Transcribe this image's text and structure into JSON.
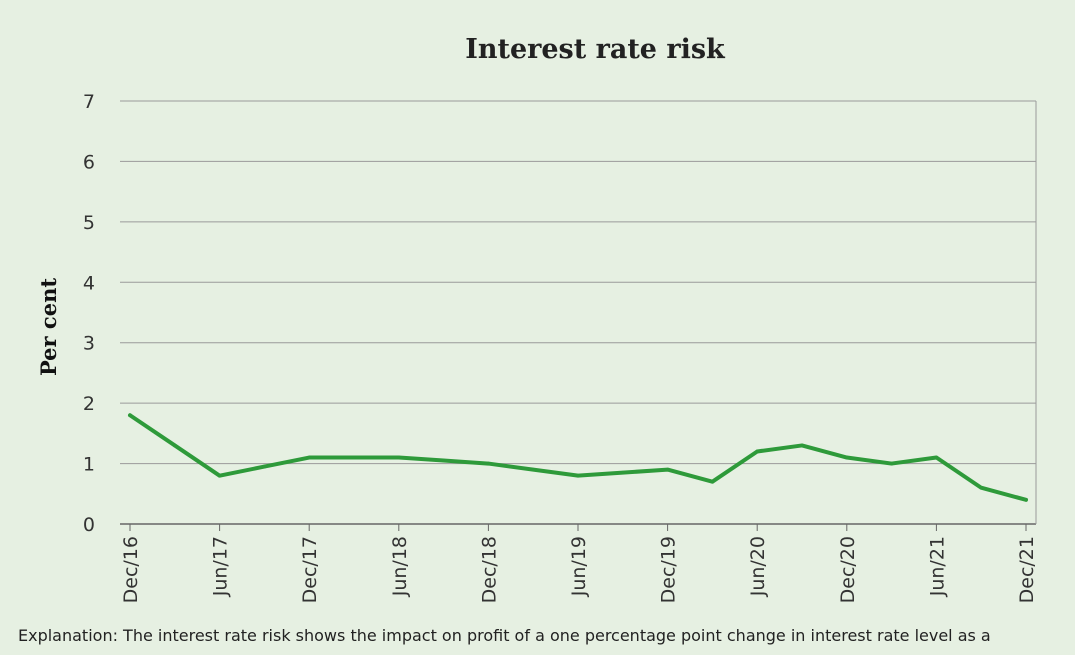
{
  "chart_data": {
    "type": "line",
    "title": "Interest rate risk",
    "xlabel": "",
    "ylabel": "Per cent",
    "ylim": [
      0,
      7
    ],
    "yticks": [
      "0",
      "1",
      "2",
      "3",
      "4",
      "5",
      "6",
      "7"
    ],
    "xticks": [
      "Dec/16",
      "Jun/17",
      "Dec/17",
      "Jun/18",
      "Dec/18",
      "Jun/19",
      "Dec/19",
      "Jun/20",
      "Dec/20",
      "Jun/21",
      "Dec/21"
    ],
    "grid": true,
    "legend": "none",
    "line_color": "#2e9a3a",
    "x": [
      "2016-12",
      "2017-03",
      "2017-06",
      "2017-09",
      "2017-12",
      "2018-03",
      "2018-06",
      "2018-09",
      "2018-12",
      "2019-03",
      "2019-06",
      "2019-09",
      "2019-12",
      "2020-03",
      "2020-06",
      "2020-09",
      "2020-12",
      "2021-03",
      "2021-06",
      "2021-09",
      "2021-12"
    ],
    "values": [
      1.8,
      1.3,
      0.8,
      0.95,
      1.1,
      1.1,
      1.1,
      1.05,
      1.0,
      0.9,
      0.8,
      0.85,
      0.9,
      0.7,
      1.2,
      1.3,
      1.1,
      1.0,
      1.1,
      0.6,
      0.4
    ]
  },
  "caption": "Explanation: The interest rate risk shows the impact on profit of a one percentage point change in interest rate level as a"
}
